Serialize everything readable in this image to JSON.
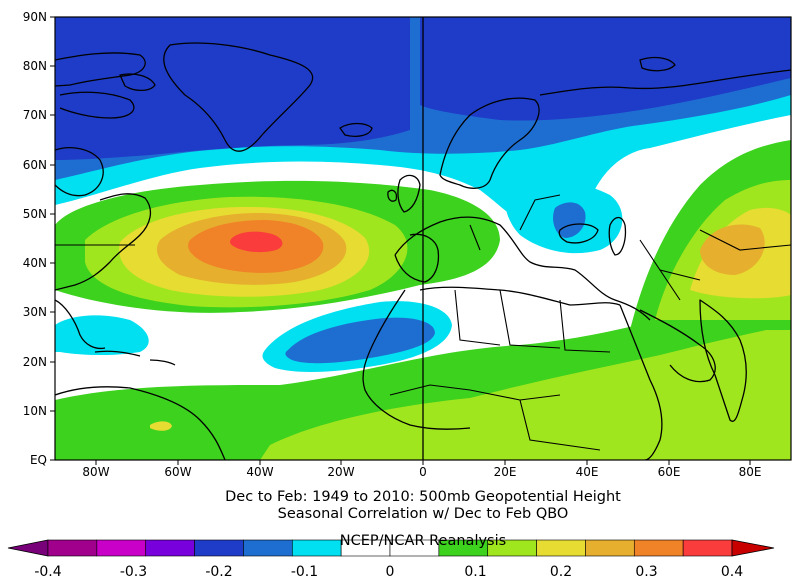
{
  "map": {
    "lat_labels": [
      "90N",
      "80N",
      "70N",
      "60N",
      "50N",
      "40N",
      "30N",
      "20N",
      "10N",
      "EQ"
    ],
    "lon_labels": [
      "80W",
      "60W",
      "40W",
      "20W",
      "0",
      "20E",
      "40E",
      "60E",
      "80E"
    ],
    "extent": {
      "lon_min": -90,
      "lon_max": 90,
      "lat_min": 0,
      "lat_max": 90
    }
  },
  "caption": {
    "line1": "Dec to Feb: 1949 to 2010: 500mb Geopotential Height",
    "line2": "Seasonal Correlation w/ Dec to Feb QBO",
    "line3": "NCEP/NCAR Reanalysis"
  },
  "colorbar": {
    "tick_labels": [
      "-0.4",
      "-0.3",
      "-0.2",
      "-0.1",
      "0",
      "0.1",
      "0.2",
      "0.3",
      "0.4"
    ],
    "colors": [
      "#a0008c",
      "#c800c8",
      "#7800dc",
      "#1e3cc8",
      "#1e6ed2",
      "#00e0f0",
      "#ffffff",
      "#ffffff",
      "#3cd21e",
      "#a0e61e",
      "#e6dc32",
      "#e6af2d",
      "#f08228",
      "#fa3c3c"
    ],
    "low_color": "#780078",
    "high_color": "#c80000"
  },
  "colors": {
    "deep_blue": "#1e3cc8",
    "blue": "#1e6ed2",
    "cyan": "#00e0f0",
    "white": "#ffffff",
    "green": "#3cd21e",
    "yellow_green": "#a0e61e",
    "yellow": "#e6dc32",
    "light_orange": "#e6af2d",
    "orange": "#f08228",
    "red": "#fa3c3c"
  }
}
